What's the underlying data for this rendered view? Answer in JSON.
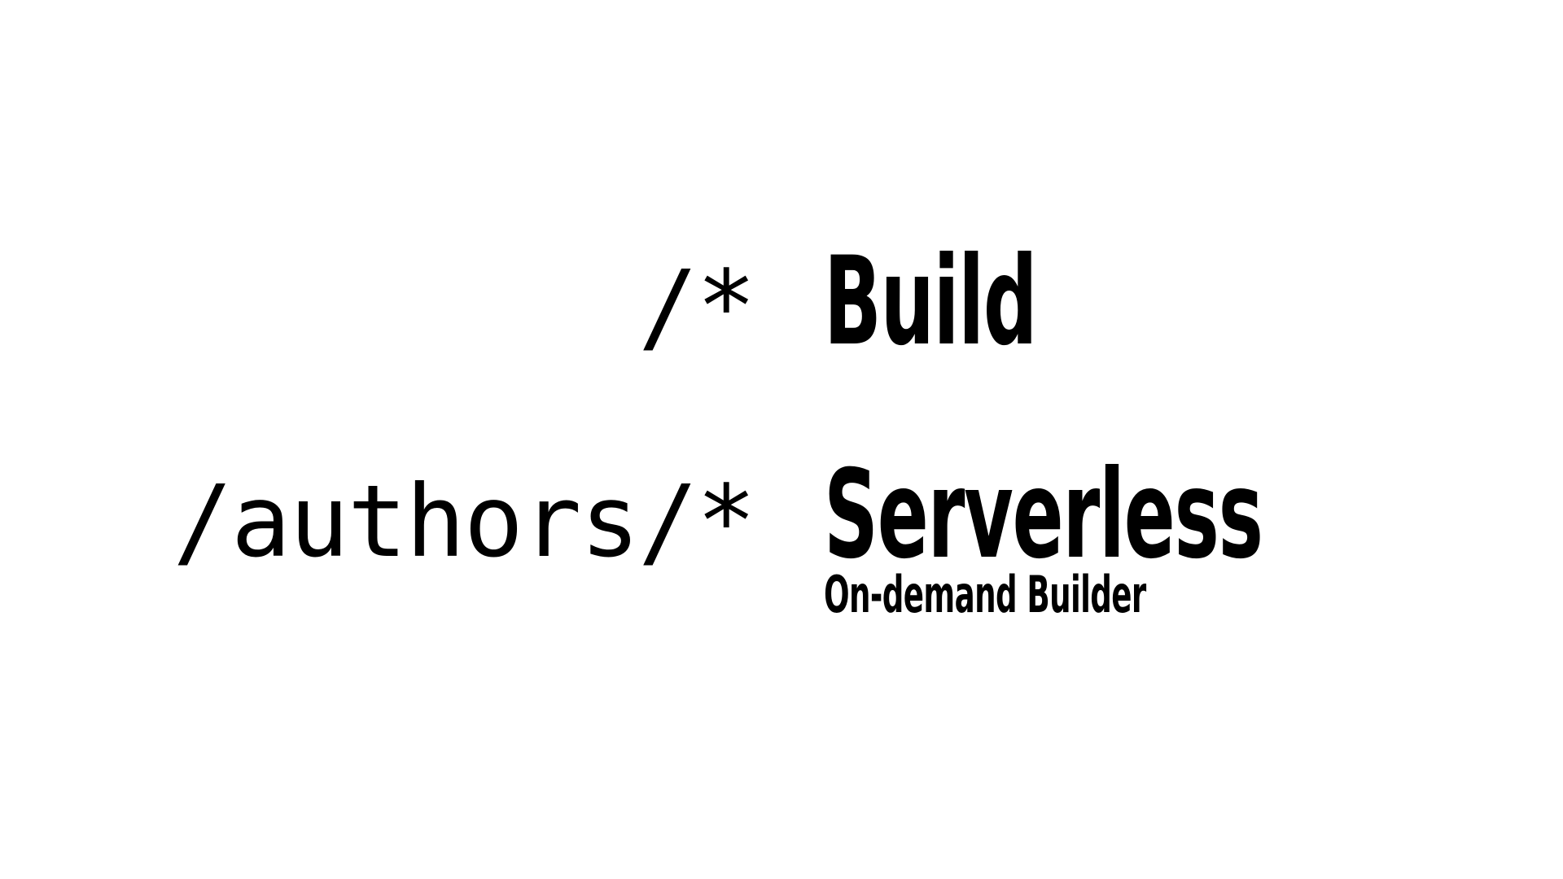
{
  "rows": [
    {
      "route": "/*",
      "label": "Build"
    },
    {
      "route": "/authors/*",
      "label": "Serverless",
      "sublabel": "On-demand Builder"
    }
  ],
  "colors": {
    "background": "#ffffff",
    "text": "#000000"
  }
}
